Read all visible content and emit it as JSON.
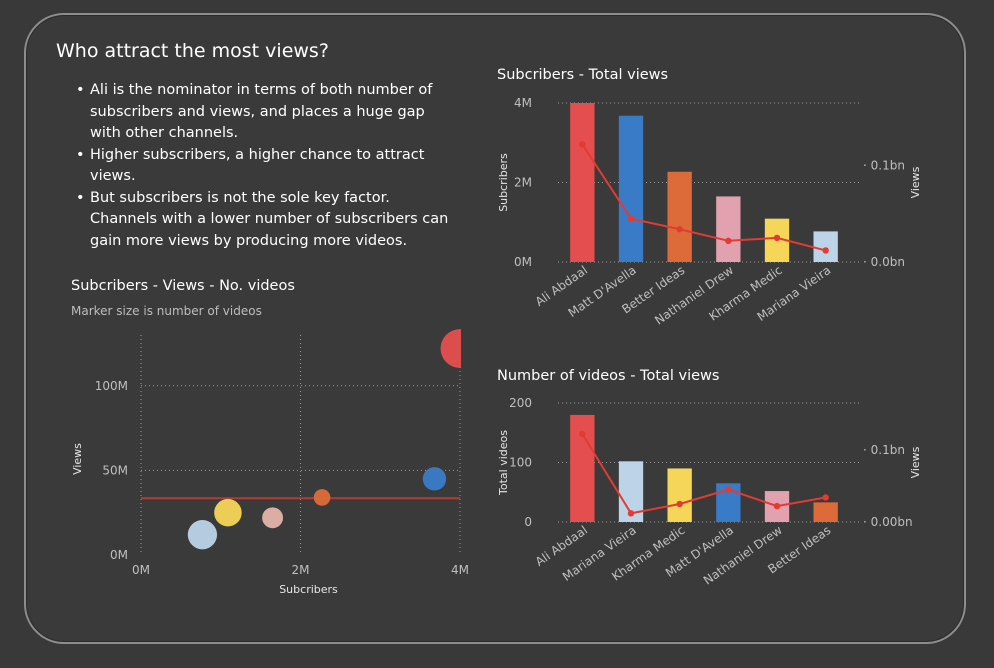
{
  "page": {
    "title": "Who attract the most views?",
    "bullets": [
      "Ali  is the nominator in terms of both number of subscribers and views, and places a huge gap with other channels.",
      "Higher subscribers, a higher chance to attract views.",
      "But subscribers is not the sole key factor. Channels with a lower number of subscribers can gain more views by producing more videos."
    ]
  },
  "colors": {
    "background": "#393939",
    "line": "#e23b32",
    "grid": "#9a9a9a"
  },
  "chart_data": [
    {
      "id": "scatter",
      "type": "scatter",
      "title": "Subcribers - Views - No. videos",
      "subtitle": "Marker size is number of videos",
      "xlabel": "Subcribers",
      "ylabel": "Views",
      "xlim": [
        0,
        4000000
      ],
      "ylim": [
        0,
        130000000
      ],
      "x_ticks": [
        {
          "v": 0,
          "label": "0M"
        },
        {
          "v": 2000000,
          "label": "2M"
        },
        {
          "v": 4000000,
          "label": "4M"
        }
      ],
      "y_ticks": [
        {
          "v": 0,
          "label": "0M"
        },
        {
          "v": 50000000,
          "label": "50M"
        },
        {
          "v": 100000000,
          "label": "100M"
        }
      ],
      "reference_line_y": 33500000,
      "points": [
        {
          "name": "Ali Abdaal",
          "x": 4000000,
          "y": 122000000,
          "videos": 180,
          "color": "#e54e4e"
        },
        {
          "name": "Matt D'Avella",
          "x": 3680000,
          "y": 45000000,
          "videos": 65,
          "color": "#3a7bc8"
        },
        {
          "name": "Better Ideas",
          "x": 2270000,
          "y": 34000000,
          "videos": 33,
          "color": "#dd6b3a"
        },
        {
          "name": "Nathaniel Drew",
          "x": 1650000,
          "y": 22000000,
          "videos": 52,
          "color": "#e5b3aa"
        },
        {
          "name": "Kharma Medic",
          "x": 1090000,
          "y": 25000000,
          "videos": 90,
          "color": "#f5d658"
        },
        {
          "name": "Mariana Vieira",
          "x": 770000,
          "y": 12000000,
          "videos": 102,
          "color": "#bcd3e8"
        }
      ]
    },
    {
      "id": "subs-views",
      "type": "bar",
      "title": "Subcribers - Total views",
      "ylabel": "Subcribers",
      "y2label": "Views",
      "categories": [
        "Ali Abdaal",
        "Matt D'Avella",
        "Better Ideas",
        "Nathaniel Drew",
        "Kharma Medic",
        "Mariana Vieira"
      ],
      "ylim": [
        0,
        4000000
      ],
      "y_ticks": [
        {
          "v": 0,
          "label": "0M"
        },
        {
          "v": 2000000,
          "label": "2M"
        },
        {
          "v": 4000000,
          "label": "4M"
        }
      ],
      "y2lim": [
        0,
        0.165
      ],
      "y2_ticks": [
        {
          "v": 0,
          "label": "0.0bn"
        },
        {
          "v": 0.1,
          "label": "0.1bn"
        }
      ],
      "series": [
        {
          "name": "Subcribers",
          "kind": "bar",
          "values": [
            4000000,
            3680000,
            2270000,
            1650000,
            1090000,
            770000
          ]
        },
        {
          "name": "Views",
          "kind": "line",
          "axis": "y2",
          "values": [
            0.122,
            0.045,
            0.034,
            0.022,
            0.025,
            0.012
          ]
        }
      ],
      "bar_colors": [
        "#e54e4e",
        "#3a7bc8",
        "#dd6b3a",
        "#e2a1ae",
        "#f5d658",
        "#bcd3e8"
      ]
    },
    {
      "id": "videos-views",
      "type": "bar",
      "title": "Number of videos - Total views",
      "ylabel": "Total videos",
      "y2label": "Views",
      "categories": [
        "Ali Abdaal",
        "Mariana Vieira",
        "Kharma Medic",
        "Matt D'Avella",
        "Nathaniel Drew",
        "Better Ideas"
      ],
      "ylim": [
        0,
        200
      ],
      "y_ticks": [
        {
          "v": 0,
          "label": "0"
        },
        {
          "v": 100,
          "label": "100"
        },
        {
          "v": 200,
          "label": "200"
        }
      ],
      "y2lim": [
        0,
        0.165
      ],
      "y2_ticks": [
        {
          "v": 0,
          "label": "0.00bn"
        },
        {
          "v": 0.1,
          "label": "0.1bn"
        }
      ],
      "series": [
        {
          "name": "Total videos",
          "kind": "bar",
          "values": [
            180,
            102,
            90,
            65,
            52,
            33
          ]
        },
        {
          "name": "Views",
          "kind": "line",
          "axis": "y2",
          "values": [
            0.122,
            0.012,
            0.025,
            0.045,
            0.022,
            0.034
          ]
        }
      ],
      "bar_colors": [
        "#e54e4e",
        "#bcd3e8",
        "#f5d658",
        "#3a7bc8",
        "#e2a1ae",
        "#dd6b3a"
      ]
    }
  ]
}
